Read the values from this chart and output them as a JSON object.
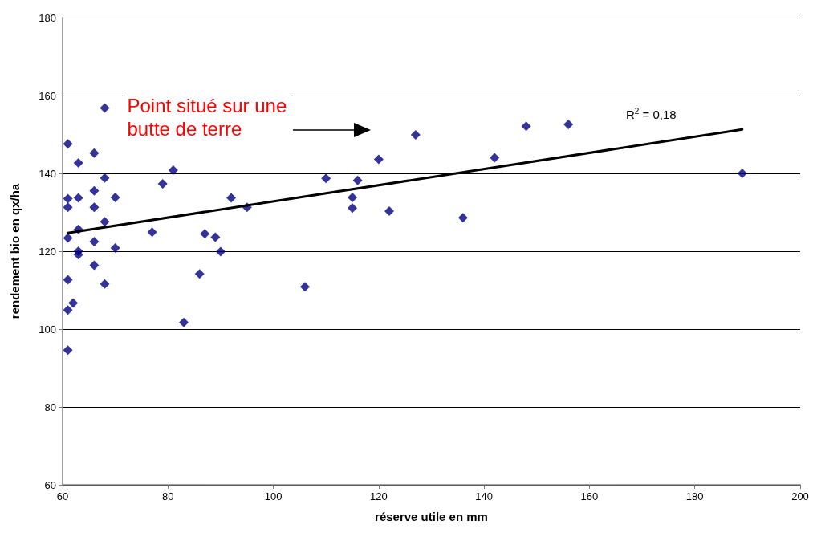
{
  "chart_data": {
    "type": "scatter",
    "xlabel": "réserve utile en mm",
    "ylabel": "rendement bio en qx/ha",
    "xlim": [
      60,
      200
    ],
    "xticks": [
      60,
      80,
      100,
      120,
      140,
      160,
      180,
      200
    ],
    "ylim": [
      60,
      180
    ],
    "yticks": [
      60,
      80,
      100,
      120,
      140,
      160,
      180
    ],
    "grid": "y",
    "marker": "diamond",
    "annotations": [
      {
        "text": "Point situé sur une\nbutte de terre",
        "x": 68,
        "y": 156.8
      },
      "R$^{2}$ = 0,18"
    ],
    "series": [
      {
        "color": "#000080",
        "x": [
          68,
          61,
          66,
          63,
          68,
          79,
          81,
          61,
          61,
          63,
          66,
          66,
          70,
          68,
          63,
          61,
          66,
          70,
          63,
          63,
          66,
          68,
          61,
          62,
          61,
          61,
          77,
          87,
          86,
          83,
          89,
          90,
          92,
          95,
          106,
          110,
          115,
          115,
          116,
          120,
          122,
          127,
          136,
          142,
          148,
          156,
          189
        ],
        "values": [
          156.8,
          147.6,
          145.2,
          142.7,
          138.8,
          137.3,
          140.8,
          133.5,
          131.3,
          133.7,
          135.5,
          131.3,
          133.8,
          127.6,
          125.6,
          123.4,
          122.5,
          120.8,
          120.0,
          119.1,
          116.4,
          111.6,
          112.7,
          106.7,
          104.9,
          94.6,
          124.9,
          124.5,
          114.2,
          101.7,
          123.6,
          119.9,
          133.7,
          131.3,
          110.9,
          138.7,
          133.8,
          131.1,
          138.2,
          143.6,
          130.3,
          149.9,
          128.6,
          144.0,
          152.1,
          152.6,
          140.0
        ]
      },
      {
        "type": "line",
        "color": "#000000",
        "marker": "none",
        "x": [
          61,
          189
        ],
        "values": [
          124.7,
          151.3
        ]
      }
    ]
  }
}
